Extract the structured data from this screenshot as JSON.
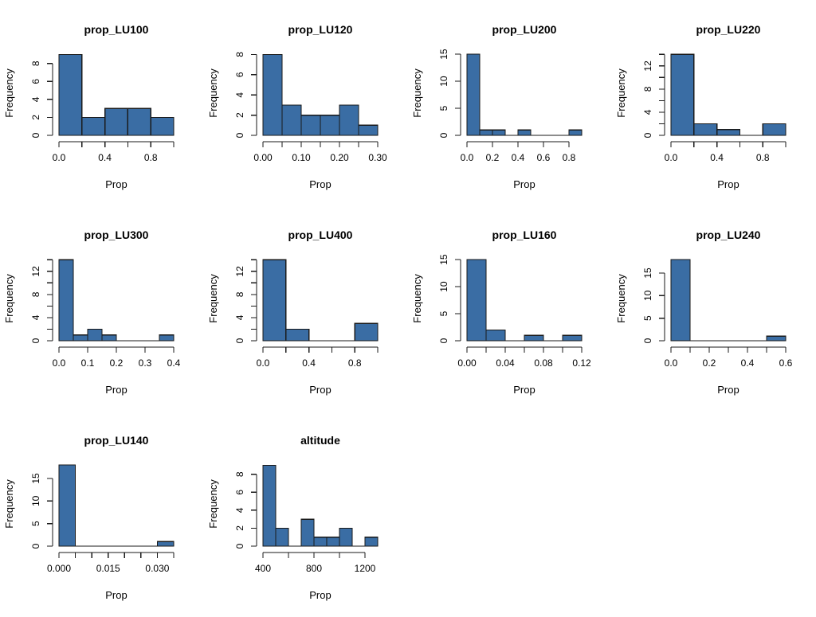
{
  "page": {
    "background": "#ffffff",
    "layout": "4-column grid of base-R style histograms, 10 panels"
  },
  "style": {
    "bar_fill": "#3a6da4",
    "bar_stroke": "#1a1a1a",
    "axis_color": "#1a1a1a",
    "text_color": "#000000"
  },
  "chart_data": [
    {
      "type": "bar",
      "title": "prop_LU100",
      "xlabel": "Prop",
      "ylabel": "Frequency",
      "bin_start": 0,
      "bin_width": 0.2,
      "counts": [
        9,
        2,
        3,
        3,
        2
      ],
      "xtick_v": [
        0,
        0.2,
        0.4,
        0.6,
        0.8,
        1.0
      ],
      "xtick_l": [
        "0.0",
        "",
        "0.4",
        "",
        "0.8",
        ""
      ],
      "ytick_v": [
        0,
        2,
        4,
        6,
        8
      ],
      "ytick_l": [
        "0",
        "2",
        "4",
        "6",
        "8"
      ],
      "ymax": 9.4,
      "grid": false,
      "legend": "none"
    },
    {
      "type": "bar",
      "title": "prop_LU120",
      "xlabel": "Prop",
      "ylabel": "Frequency",
      "bin_start": 0,
      "bin_width": 0.05,
      "counts": [
        8,
        3,
        2,
        2,
        3,
        1
      ],
      "xtick_v": [
        0,
        0.05,
        0.1,
        0.15,
        0.2,
        0.25,
        0.3
      ],
      "xtick_l": [
        "0.00",
        "",
        "0.10",
        "",
        "0.20",
        "",
        "0.30"
      ],
      "ytick_v": [
        0,
        2,
        4,
        6,
        8
      ],
      "ytick_l": [
        "0",
        "2",
        "4",
        "6",
        "8"
      ],
      "ymax": 8.35,
      "grid": false,
      "legend": "none"
    },
    {
      "type": "bar",
      "title": "prop_LU200",
      "xlabel": "Prop",
      "ylabel": "Frequency",
      "bin_start": 0,
      "bin_width": 0.1,
      "counts": [
        15,
        1,
        1,
        0,
        1,
        0,
        0,
        0,
        1
      ],
      "xtick_v": [
        0,
        0.2,
        0.4,
        0.6,
        0.8
      ],
      "xtick_l": [
        "0.0",
        "0.2",
        "0.4",
        "0.6",
        "0.8"
      ],
      "ytick_v": [
        0,
        5,
        10,
        15
      ],
      "ytick_l": [
        "0",
        "5",
        "10",
        "15"
      ],
      "ymax": 15.6,
      "grid": false,
      "legend": "none"
    },
    {
      "type": "bar",
      "title": "prop_LU220",
      "xlabel": "Prop",
      "ylabel": "Frequency",
      "bin_start": 0,
      "bin_width": 0.2,
      "counts": [
        14,
        2,
        1,
        0,
        2
      ],
      "xtick_v": [
        0,
        0.2,
        0.4,
        0.6,
        0.8,
        1.0
      ],
      "xtick_l": [
        "0.0",
        "",
        "0.4",
        "",
        "0.8",
        ""
      ],
      "ytick_v": [
        0,
        2,
        4,
        6,
        8,
        10,
        12,
        14
      ],
      "ytick_l": [
        "0",
        "",
        "4",
        "",
        "8",
        "",
        "12",
        ""
      ],
      "ymax": 14.6,
      "grid": false,
      "legend": "none"
    },
    {
      "type": "bar",
      "title": "prop_LU300",
      "xlabel": "Prop",
      "ylabel": "Frequency",
      "bin_start": 0,
      "bin_width": 0.05,
      "counts": [
        14,
        1,
        2,
        1,
        0,
        0,
        0,
        1
      ],
      "xtick_v": [
        0,
        0.1,
        0.2,
        0.3,
        0.4
      ],
      "xtick_l": [
        "0.0",
        "0.1",
        "0.2",
        "0.3",
        "0.4"
      ],
      "ytick_v": [
        0,
        2,
        4,
        6,
        8,
        10,
        12,
        14
      ],
      "ytick_l": [
        "0",
        "",
        "4",
        "",
        "8",
        "",
        "12",
        ""
      ],
      "ymax": 14.6,
      "grid": false,
      "legend": "none"
    },
    {
      "type": "bar",
      "title": "prop_LU400",
      "xlabel": "Prop",
      "ylabel": "Frequency",
      "bin_start": 0,
      "bin_width": 0.2,
      "counts": [
        14,
        2,
        0,
        0,
        3
      ],
      "xtick_v": [
        0,
        0.2,
        0.4,
        0.6,
        0.8,
        1.0
      ],
      "xtick_l": [
        "0.0",
        "",
        "0.4",
        "",
        "0.8",
        ""
      ],
      "ytick_v": [
        0,
        2,
        4,
        6,
        8,
        10,
        12,
        14
      ],
      "ytick_l": [
        "0",
        "",
        "4",
        "",
        "8",
        "",
        "12",
        ""
      ],
      "ymax": 14.6,
      "grid": false,
      "legend": "none"
    },
    {
      "type": "bar",
      "title": "prop_LU160",
      "xlabel": "Prop",
      "ylabel": "Frequency",
      "bin_start": 0,
      "bin_width": 0.02,
      "counts": [
        15,
        2,
        0,
        1,
        0,
        1
      ],
      "xtick_v": [
        0,
        0.02,
        0.04,
        0.06,
        0.08,
        0.1,
        0.12
      ],
      "xtick_l": [
        "0.00",
        "",
        "0.04",
        "",
        "0.08",
        "",
        "0.12"
      ],
      "ytick_v": [
        0,
        5,
        10,
        15
      ],
      "ytick_l": [
        "0",
        "5",
        "10",
        "15"
      ],
      "ymax": 15.6,
      "grid": false,
      "legend": "none"
    },
    {
      "type": "bar",
      "title": "prop_LU240",
      "xlabel": "Prop",
      "ylabel": "Frequency",
      "bin_start": 0,
      "bin_width": 0.1,
      "counts": [
        18,
        0,
        0,
        0,
        0,
        1
      ],
      "xtick_v": [
        0,
        0.1,
        0.2,
        0.3,
        0.4,
        0.5,
        0.6
      ],
      "xtick_l": [
        "0.0",
        "",
        "0.2",
        "",
        "0.4",
        "",
        "0.6"
      ],
      "ytick_v": [
        0,
        5,
        10,
        15
      ],
      "ytick_l": [
        "0",
        "5",
        "10",
        "15"
      ],
      "ymax": 18.7,
      "grid": false,
      "legend": "none"
    },
    {
      "type": "bar",
      "title": "prop_LU140",
      "xlabel": "Prop",
      "ylabel": "Frequency",
      "bin_start": 0,
      "bin_width": 0.005,
      "counts": [
        18,
        0,
        0,
        0,
        0,
        0,
        1
      ],
      "xtick_v": [
        0,
        0.005,
        0.01,
        0.015,
        0.02,
        0.025,
        0.03,
        0.035
      ],
      "xtick_l": [
        "0.000",
        "",
        "",
        "0.015",
        "",
        "",
        "0.030",
        ""
      ],
      "ytick_v": [
        0,
        5,
        10,
        15
      ],
      "ytick_l": [
        "0",
        "5",
        "10",
        "15"
      ],
      "ymax": 18.7,
      "grid": false,
      "legend": "none"
    },
    {
      "type": "bar",
      "title": "altitude",
      "xlabel": "Prop",
      "ylabel": "Frequency",
      "bin_start": 400,
      "bin_width": 100,
      "counts": [
        9,
        2,
        0,
        3,
        1,
        1,
        2,
        0,
        1
      ],
      "xtick_v": [
        400,
        600,
        800,
        1000,
        1200
      ],
      "xtick_l": [
        "400",
        "",
        "800",
        "",
        "1200"
      ],
      "ytick_v": [
        0,
        2,
        4,
        6,
        8
      ],
      "ytick_l": [
        "0",
        "2",
        "4",
        "6",
        "8"
      ],
      "ymax": 9.4,
      "grid": false,
      "legend": "none"
    }
  ]
}
